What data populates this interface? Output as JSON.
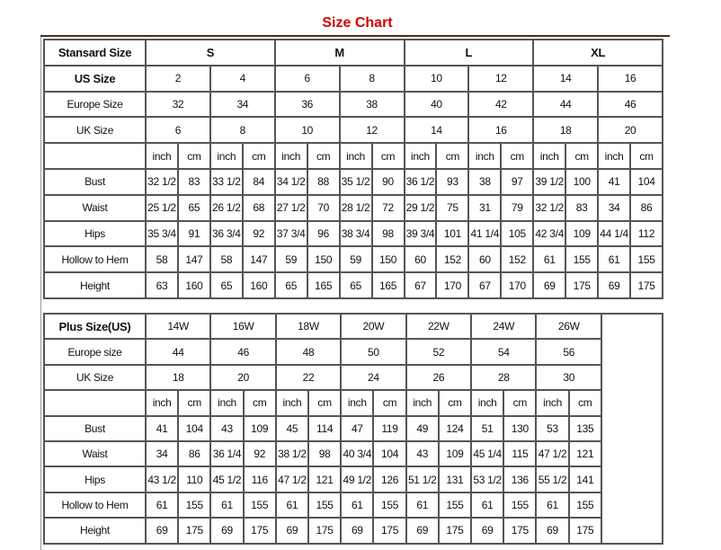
{
  "title": "Size Chart",
  "standard": {
    "header_label": "Stansard Size",
    "groups": [
      "S",
      "M",
      "L",
      "XL"
    ],
    "us_label": "US Size",
    "us": [
      "2",
      "4",
      "6",
      "8",
      "10",
      "12",
      "14",
      "16"
    ],
    "eu_label": "Europe Size",
    "eu": [
      "32",
      "34",
      "36",
      "38",
      "40",
      "42",
      "44",
      "46"
    ],
    "uk_label": "UK Size",
    "uk": [
      "6",
      "8",
      "10",
      "12",
      "14",
      "16",
      "18",
      "20"
    ],
    "unit_inch": "inch",
    "unit_cm": "cm",
    "measures": [
      {
        "label": "Bust",
        "values": [
          "32 1/2",
          "83",
          "33 1/2",
          "84",
          "34 1/2",
          "88",
          "35 1/2",
          "90",
          "36 1/2",
          "93",
          "38",
          "97",
          "39 1/2",
          "100",
          "41",
          "104"
        ]
      },
      {
        "label": "Waist",
        "values": [
          "25 1/2",
          "65",
          "26 1/2",
          "68",
          "27 1/2",
          "70",
          "28 1/2",
          "72",
          "29 1/2",
          "75",
          "31",
          "79",
          "32 1/2",
          "83",
          "34",
          "86"
        ]
      },
      {
        "label": "Hips",
        "values": [
          "35 3/4",
          "91",
          "36 3/4",
          "92",
          "37 3/4",
          "96",
          "38 3/4",
          "98",
          "39 3/4",
          "101",
          "41 1/4",
          "105",
          "42 3/4",
          "109",
          "44 1/4",
          "112"
        ]
      },
      {
        "label": "Hollow to Hem",
        "values": [
          "58",
          "147",
          "58",
          "147",
          "59",
          "150",
          "59",
          "150",
          "60",
          "152",
          "60",
          "152",
          "61",
          "155",
          "61",
          "155"
        ]
      },
      {
        "label": "Height",
        "values": [
          "63",
          "160",
          "65",
          "160",
          "65",
          "165",
          "65",
          "165",
          "67",
          "170",
          "67",
          "170",
          "69",
          "175",
          "69",
          "175"
        ]
      }
    ]
  },
  "plus": {
    "header_label": "Plus Size(US)",
    "sizes": [
      "14W",
      "16W",
      "18W",
      "20W",
      "22W",
      "24W",
      "26W"
    ],
    "eu_label": "Europe size",
    "eu": [
      "44",
      "46",
      "48",
      "50",
      "52",
      "54",
      "56"
    ],
    "uk_label": "UK Size",
    "uk": [
      "18",
      "20",
      "22",
      "24",
      "26",
      "28",
      "30"
    ],
    "unit_inch": "inch",
    "unit_cm": "cm",
    "measures": [
      {
        "label": "Bust",
        "values": [
          "41",
          "104",
          "43",
          "109",
          "45",
          "114",
          "47",
          "119",
          "49",
          "124",
          "51",
          "130",
          "53",
          "135"
        ]
      },
      {
        "label": "Waist",
        "values": [
          "34",
          "86",
          "36 1/4",
          "92",
          "38 1/2",
          "98",
          "40 3/4",
          "104",
          "43",
          "109",
          "45 1/4",
          "115",
          "47 1/2",
          "121"
        ]
      },
      {
        "label": "Hips",
        "values": [
          "43 1/2",
          "110",
          "45 1/2",
          "116",
          "47 1/2",
          "121",
          "49 1/2",
          "126",
          "51 1/2",
          "131",
          "53 1/2",
          "136",
          "55 1/2",
          "141"
        ]
      },
      {
        "label": "Hollow to Hem",
        "values": [
          "61",
          "155",
          "61",
          "155",
          "61",
          "155",
          "61",
          "155",
          "61",
          "155",
          "61",
          "155",
          "61",
          "155"
        ]
      },
      {
        "label": "Height",
        "values": [
          "69",
          "175",
          "69",
          "175",
          "69",
          "175",
          "69",
          "175",
          "69",
          "175",
          "69",
          "175",
          "69",
          "175"
        ]
      }
    ]
  }
}
